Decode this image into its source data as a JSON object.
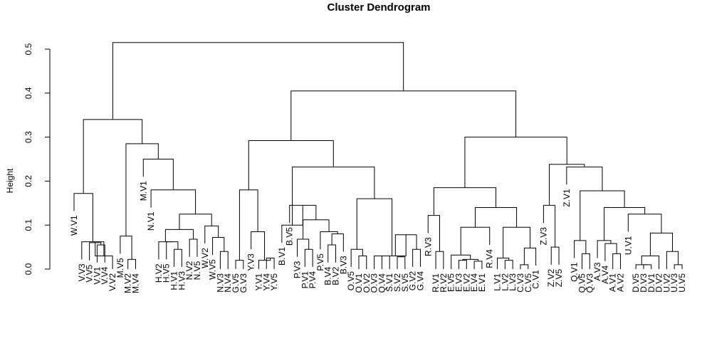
{
  "chart_data": {
    "type": "dendrogram",
    "title": "Cluster Dendrogram",
    "ylabel": "Height",
    "xlabel": "",
    "ylim": [
      0,
      0.55
    ],
    "yticks": [
      "0.0",
      "0.1",
      "0.2",
      "0.3",
      "0.4",
      "0.5"
    ],
    "leaves": [
      "W.V1",
      "V.V3",
      "V.V5",
      "V.V1",
      "V.V4",
      "V.V2",
      "M.V5",
      "M.V2",
      "M.V4",
      "M.V1",
      "N.V1",
      "H.V2",
      "H.V5",
      "H.V1",
      "H.V3",
      "N.V2",
      "N.V5",
      "W.V2",
      "W.V5",
      "N.V3",
      "N.V4",
      "G.V5",
      "G.V3",
      "Y.V3",
      "Y.V1",
      "Y.V4",
      "Y.V5",
      "B.V1",
      "B.V5",
      "P.V3",
      "P.V1",
      "P.V4",
      "P.V5",
      "B.V4",
      "B.V2",
      "B.V3",
      "O.V5",
      "O.V1",
      "O.V2",
      "O.V3",
      "Q.V4",
      "S.V1",
      "S.V2",
      "S.V5",
      "G.V2",
      "G.V4",
      "R.V3",
      "R.V1",
      "R.V2",
      "E.V5",
      "E.V3",
      "E.V2",
      "E.V4",
      "E.V1",
      "R.V4",
      "L.V1",
      "L.V2",
      "L.V3",
      "C.V3",
      "C.V5",
      "C.V1",
      "Z.V3",
      "Z.V2",
      "Z.V5",
      "Z.V1",
      "Q.V1",
      "Q.V5",
      "Q.V3",
      "A.V3",
      "A.V4",
      "A.V1",
      "A.V2",
      "U.V1",
      "D.V5",
      "D.V3",
      "D.V1",
      "D.V2",
      "U.V2",
      "U.V3",
      "U.V5"
    ],
    "merges": [
      {
        "id": "n1",
        "children": [
          "V.V1",
          "V.V4"
        ],
        "height": 0.055
      },
      {
        "id": "n2",
        "children": [
          "V.V5",
          "n1"
        ],
        "height": 0.06
      },
      {
        "id": "n3",
        "children": [
          "n2",
          "V.V2"
        ],
        "height": 0.03
      },
      {
        "id": "n4",
        "children": [
          "V.V3",
          "n3"
        ],
        "height": 0.062
      },
      {
        "id": "n5",
        "children": [
          "W.V1",
          "n4"
        ],
        "height": 0.172
      },
      {
        "id": "n6",
        "children": [
          "M.V2",
          "M.V4"
        ],
        "height": 0.022
      },
      {
        "id": "n7",
        "children": [
          "M.V5",
          "n6"
        ],
        "height": 0.075
      },
      {
        "id": "n8",
        "children": [
          "H.V1",
          "H.V3"
        ],
        "height": 0.045
      },
      {
        "id": "n9",
        "children": [
          "H.V5",
          "n8"
        ],
        "height": 0.062
      },
      {
        "id": "n10",
        "children": [
          "H.V2",
          "n9"
        ],
        "height": 0.062
      },
      {
        "id": "n11",
        "children": [
          "N.V2",
          "N.V5"
        ],
        "height": 0.068
      },
      {
        "id": "n12",
        "children": [
          "n10",
          "n11"
        ],
        "height": 0.09
      },
      {
        "id": "n13",
        "children": [
          "N.V3",
          "N.V4"
        ],
        "height": 0.04
      },
      {
        "id": "n14",
        "children": [
          "W.V5",
          "n13"
        ],
        "height": 0.072
      },
      {
        "id": "n15",
        "children": [
          "W.V2",
          "n14"
        ],
        "height": 0.098
      },
      {
        "id": "n16",
        "children": [
          "n12",
          "n15"
        ],
        "height": 0.125
      },
      {
        "id": "n17",
        "children": [
          "N.V1",
          "n16"
        ],
        "height": 0.18
      },
      {
        "id": "n18",
        "children": [
          "M.V1",
          "n17"
        ],
        "height": 0.25
      },
      {
        "id": "n19",
        "children": [
          "n7",
          "n18"
        ],
        "height": 0.285
      },
      {
        "id": "n20",
        "children": [
          "n5",
          "n19"
        ],
        "height": 0.34
      },
      {
        "id": "n21",
        "children": [
          "G.V5",
          "G.V3"
        ],
        "height": 0.02
      },
      {
        "id": "n22",
        "children": [
          "Y.V4",
          "Y.V5"
        ],
        "height": 0.025
      },
      {
        "id": "n23",
        "children": [
          "Y.V1",
          "n22"
        ],
        "height": 0.02
      },
      {
        "id": "n24",
        "children": [
          "Y.V3",
          "n23"
        ],
        "height": 0.085
      },
      {
        "id": "n25",
        "children": [
          "n21",
          "n24"
        ],
        "height": 0.18
      },
      {
        "id": "n26",
        "children": [
          "P.V1",
          "P.V4"
        ],
        "height": 0.045
      },
      {
        "id": "n27",
        "children": [
          "P.V3",
          "n26"
        ],
        "height": 0.068
      },
      {
        "id": "n28",
        "children": [
          "B.V4",
          "B.V2"
        ],
        "height": 0.055
      },
      {
        "id": "n29",
        "children": [
          "n28",
          "B.V3"
        ],
        "height": 0.08
      },
      {
        "id": "n30",
        "children": [
          "P.V5",
          "n29"
        ],
        "height": 0.085
      },
      {
        "id": "n31",
        "children": [
          "n27",
          "n30"
        ],
        "height": 0.112
      },
      {
        "id": "n32",
        "children": [
          "B.V5",
          "n31"
        ],
        "height": 0.145
      },
      {
        "id": "n33",
        "children": [
          "B.V1",
          "n32"
        ],
        "height": 0.1
      },
      {
        "id": "n34",
        "children": [
          "O.V1",
          "O.V2"
        ],
        "height": 0.03
      },
      {
        "id": "n35",
        "children": [
          "O.V5",
          "n34"
        ],
        "height": 0.045
      },
      {
        "id": "n36",
        "children": [
          "O.V3",
          "Q.V4"
        ],
        "height": 0.03
      },
      {
        "id": "n37",
        "children": [
          "S.V2",
          "S.V5"
        ],
        "height": 0.028
      },
      {
        "id": "n38",
        "children": [
          "S.V1",
          "n37"
        ],
        "height": 0.03
      },
      {
        "id": "n39",
        "children": [
          "G.V2",
          "G.V4"
        ],
        "height": 0.045
      },
      {
        "id": "n40",
        "children": [
          "n38",
          "n39"
        ],
        "height": 0.078
      },
      {
        "id": "n41",
        "children": [
          "n36",
          "n40"
        ],
        "height": 0.03
      },
      {
        "id": "n42",
        "children": [
          "n35",
          "n41"
        ],
        "height": 0.16
      },
      {
        "id": "n43",
        "children": [
          "n33",
          "n42"
        ],
        "height": 0.232
      },
      {
        "id": "n44",
        "children": [
          "n25",
          "n43"
        ],
        "height": 0.292
      },
      {
        "id": "n45",
        "children": [
          "R.V1",
          "R.V2"
        ],
        "height": 0.04
      },
      {
        "id": "n46",
        "children": [
          "R.V3",
          "n45"
        ],
        "height": 0.122
      },
      {
        "id": "n47",
        "children": [
          "E.V3",
          "E.V2"
        ],
        "height": 0.02
      },
      {
        "id": "n48",
        "children": [
          "E.V4",
          "E.V1"
        ],
        "height": 0.018
      },
      {
        "id": "n49",
        "children": [
          "n47",
          "n48"
        ],
        "height": 0.022
      },
      {
        "id": "n50",
        "children": [
          "E.V5",
          "n49"
        ],
        "height": 0.032
      },
      {
        "id": "n51",
        "children": [
          "n50",
          "R.V4"
        ],
        "height": 0.095
      },
      {
        "id": "n52",
        "children": [
          "L.V2",
          "L.V3"
        ],
        "height": 0.02
      },
      {
        "id": "n53",
        "children": [
          "L.V1",
          "n52"
        ],
        "height": 0.025
      },
      {
        "id": "n54",
        "children": [
          "C.V3",
          "C.V5"
        ],
        "height": 0.01
      },
      {
        "id": "n55",
        "children": [
          "n54",
          "C.V1"
        ],
        "height": 0.048
      },
      {
        "id": "n56",
        "children": [
          "n53",
          "n55"
        ],
        "height": 0.095
      },
      {
        "id": "n57",
        "children": [
          "n51",
          "n56"
        ],
        "height": 0.14
      },
      {
        "id": "n58",
        "children": [
          "n46",
          "n57"
        ],
        "height": 0.185
      },
      {
        "id": "n59",
        "children": [
          "Z.V2",
          "Z.V5"
        ],
        "height": 0.05
      },
      {
        "id": "n60",
        "children": [
          "Z.V3",
          "n59"
        ],
        "height": 0.145
      },
      {
        "id": "n61",
        "children": [
          "Q.V5",
          "Q.V3"
        ],
        "height": 0.035
      },
      {
        "id": "n62",
        "children": [
          "Q.V1",
          "n61"
        ],
        "height": 0.065
      },
      {
        "id": "n63",
        "children": [
          "A.V1",
          "A.V2"
        ],
        "height": 0.035
      },
      {
        "id": "n64",
        "children": [
          "A.V4",
          "n63"
        ],
        "height": 0.058
      },
      {
        "id": "n65",
        "children": [
          "A.V3",
          "n64"
        ],
        "height": 0.065
      },
      {
        "id": "n66",
        "children": [
          "D.V3",
          "D.V1"
        ],
        "height": 0.01
      },
      {
        "id": "n67",
        "children": [
          "D.V5",
          "n66"
        ],
        "height": 0.01
      },
      {
        "id": "n68",
        "children": [
          "n67",
          "D.V2"
        ],
        "height": 0.03
      },
      {
        "id": "n69",
        "children": [
          "U.V3",
          "U.V5"
        ],
        "height": 0.01
      },
      {
        "id": "n70",
        "children": [
          "U.V2",
          "n69"
        ],
        "height": 0.04
      },
      {
        "id": "n71",
        "children": [
          "n68",
          "n70"
        ],
        "height": 0.082
      },
      {
        "id": "n72",
        "children": [
          "U.V1",
          "n71"
        ],
        "height": 0.125
      },
      {
        "id": "n73",
        "children": [
          "n65",
          "n72"
        ],
        "height": 0.14
      },
      {
        "id": "n74",
        "children": [
          "n62",
          "n73"
        ],
        "height": 0.178
      },
      {
        "id": "n75",
        "children": [
          "Z.V1",
          "n74"
        ],
        "height": 0.232
      },
      {
        "id": "n76",
        "children": [
          "n60",
          "n75"
        ],
        "height": 0.238
      },
      {
        "id": "n77",
        "children": [
          "n58",
          "n76"
        ],
        "height": 0.3
      },
      {
        "id": "n78",
        "children": [
          "n44",
          "n77"
        ],
        "height": 0.405
      },
      {
        "id": "n79",
        "children": [
          "n20",
          "n78"
        ],
        "height": 0.515
      }
    ]
  }
}
